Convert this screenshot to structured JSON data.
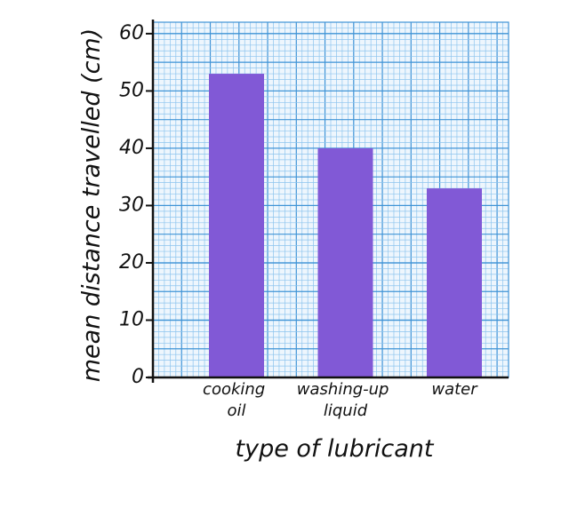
{
  "chart_data": {
    "type": "bar",
    "categories": [
      "cooking oil",
      "washing-up liquid",
      "water"
    ],
    "values": [
      53,
      40,
      33
    ],
    "color": "#8159d6",
    "x_label": "type of lubricant",
    "y_label": "mean distance travelled (cm)",
    "ylim": [
      0,
      62
    ],
    "yticks": [
      0,
      10,
      20,
      30,
      40,
      50,
      60
    ],
    "grid": true
  }
}
